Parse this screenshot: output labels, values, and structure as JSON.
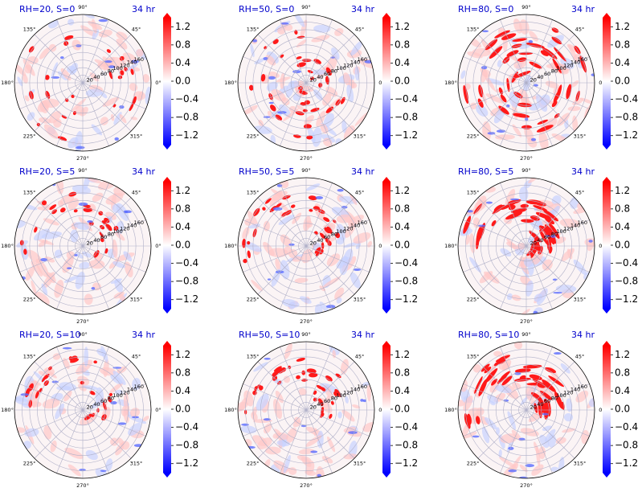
{
  "figure": {
    "colorbar_ticks": [
      1.2,
      0.8,
      0.4,
      0.0,
      -0.4,
      -0.8,
      -1.2
    ],
    "colorbar_range": [
      -1.4,
      1.4
    ],
    "colormap": [
      "#0000ff",
      "#ffffff",
      "#ff0000"
    ],
    "title_color": "#0000cc"
  },
  "chart_data": [
    {
      "type": "polar-heatmap",
      "title": "RH=20, S=0",
      "time": "34 hr",
      "angle_ticks": [
        "0°",
        "45°",
        "90°",
        "135°",
        "180°",
        "225°",
        "270°",
        "315°"
      ],
      "radius_ticks": [
        "20",
        "40",
        "60",
        "80",
        "100",
        "120",
        "140",
        "160"
      ],
      "rmax": 180,
      "colorbar": {
        "min": -1.4,
        "max": 1.4,
        "ticks": [
          "1.2",
          "0.8",
          "0.4",
          "0.0",
          "−0.4",
          "−0.8",
          "−1.2"
        ]
      }
    },
    {
      "type": "polar-heatmap",
      "title": "RH=50, S=0",
      "time": "34 hr",
      "angle_ticks": [
        "0°",
        "45°",
        "90°",
        "135°",
        "180°",
        "225°",
        "270°",
        "315°"
      ],
      "radius_ticks": [
        "20",
        "40",
        "60",
        "80",
        "100",
        "120",
        "140",
        "160"
      ],
      "rmax": 180,
      "colorbar": {
        "min": -1.4,
        "max": 1.4,
        "ticks": [
          "1.2",
          "0.8",
          "0.4",
          "0.0",
          "−0.4",
          "−0.8",
          "−1.2"
        ]
      }
    },
    {
      "type": "polar-heatmap",
      "title": "RH=80, S=0",
      "time": "34 hr",
      "angle_ticks": [
        "0°",
        "45°",
        "90°",
        "135°",
        "180°",
        "225°",
        "270°",
        "315°"
      ],
      "radius_ticks": [
        "20",
        "40",
        "60",
        "80",
        "100",
        "120",
        "140",
        "160"
      ],
      "rmax": 180,
      "colorbar": {
        "min": -1.4,
        "max": 1.4,
        "ticks": [
          "1.2",
          "0.8",
          "0.4",
          "0.0",
          "−0.4",
          "−0.8",
          "−1.2"
        ]
      }
    },
    {
      "type": "polar-heatmap",
      "title": "RH=20, S=5",
      "time": "34 hr",
      "angle_ticks": [
        "0°",
        "45°",
        "90°",
        "135°",
        "180°",
        "225°",
        "270°",
        "315°"
      ],
      "radius_ticks": [
        "20",
        "40",
        "60",
        "80",
        "100",
        "120",
        "140",
        "160"
      ],
      "rmax": 180,
      "colorbar": {
        "min": -1.4,
        "max": 1.4,
        "ticks": [
          "1.2",
          "0.8",
          "0.4",
          "0.0",
          "−0.4",
          "−0.8",
          "−1.2"
        ]
      }
    },
    {
      "type": "polar-heatmap",
      "title": "RH=50, S=5",
      "time": "34 hr",
      "angle_ticks": [
        "0°",
        "45°",
        "90°",
        "135°",
        "180°",
        "225°",
        "270°",
        "315°"
      ],
      "radius_ticks": [
        "20",
        "40",
        "60",
        "80",
        "100",
        "120",
        "140",
        "160"
      ],
      "rmax": 180,
      "colorbar": {
        "min": -1.4,
        "max": 1.4,
        "ticks": [
          "1.2",
          "0.8",
          "0.4",
          "0.0",
          "−0.4",
          "−0.8",
          "−1.2"
        ]
      }
    },
    {
      "type": "polar-heatmap",
      "title": "RH=80, S=5",
      "time": "34 hr",
      "angle_ticks": [
        "0°",
        "45°",
        "90°",
        "135°",
        "180°",
        "225°",
        "270°",
        "315°"
      ],
      "radius_ticks": [
        "20",
        "40",
        "60",
        "80",
        "100",
        "120",
        "140",
        "160"
      ],
      "rmax": 180,
      "colorbar": {
        "min": -1.4,
        "max": 1.4,
        "ticks": [
          "1.2",
          "0.8",
          "0.4",
          "0.0",
          "−0.4",
          "−0.8",
          "−1.2"
        ]
      }
    },
    {
      "type": "polar-heatmap",
      "title": "RH=20, S=10",
      "time": "34 hr",
      "angle_ticks": [
        "0°",
        "45°",
        "90°",
        "135°",
        "180°",
        "225°",
        "270°",
        "315°"
      ],
      "radius_ticks": [
        "20",
        "40",
        "60",
        "80",
        "100",
        "120",
        "140",
        "160"
      ],
      "rmax": 180,
      "colorbar": {
        "min": -1.4,
        "max": 1.4,
        "ticks": [
          "1.2",
          "0.8",
          "0.4",
          "0.0",
          "−0.4",
          "−0.8",
          "−1.2"
        ]
      }
    },
    {
      "type": "polar-heatmap",
      "title": "RH=50, S=10",
      "time": "34 hr",
      "angle_ticks": [
        "0°",
        "45°",
        "90°",
        "135°",
        "180°",
        "225°",
        "270°",
        "315°"
      ],
      "radius_ticks": [
        "20",
        "40",
        "60",
        "80",
        "100",
        "120",
        "140",
        "160"
      ],
      "rmax": 180,
      "colorbar": {
        "min": -1.4,
        "max": 1.4,
        "ticks": [
          "1.2",
          "0.8",
          "0.4",
          "0.0",
          "−0.4",
          "−0.8",
          "−1.2"
        ]
      }
    },
    {
      "type": "polar-heatmap",
      "title": "RH=80, S=10",
      "time": "34 hr",
      "angle_ticks": [
        "0°",
        "45°",
        "90°",
        "135°",
        "180°",
        "225°",
        "270°",
        "315°"
      ],
      "radius_ticks": [
        "20",
        "40",
        "60",
        "80",
        "100",
        "120",
        "140",
        "160"
      ],
      "rmax": 180,
      "colorbar": {
        "min": -1.4,
        "max": 1.4,
        "ticks": [
          "1.2",
          "0.8",
          "0.4",
          "0.0",
          "−0.4",
          "−0.8",
          "−1.2"
        ]
      }
    }
  ]
}
